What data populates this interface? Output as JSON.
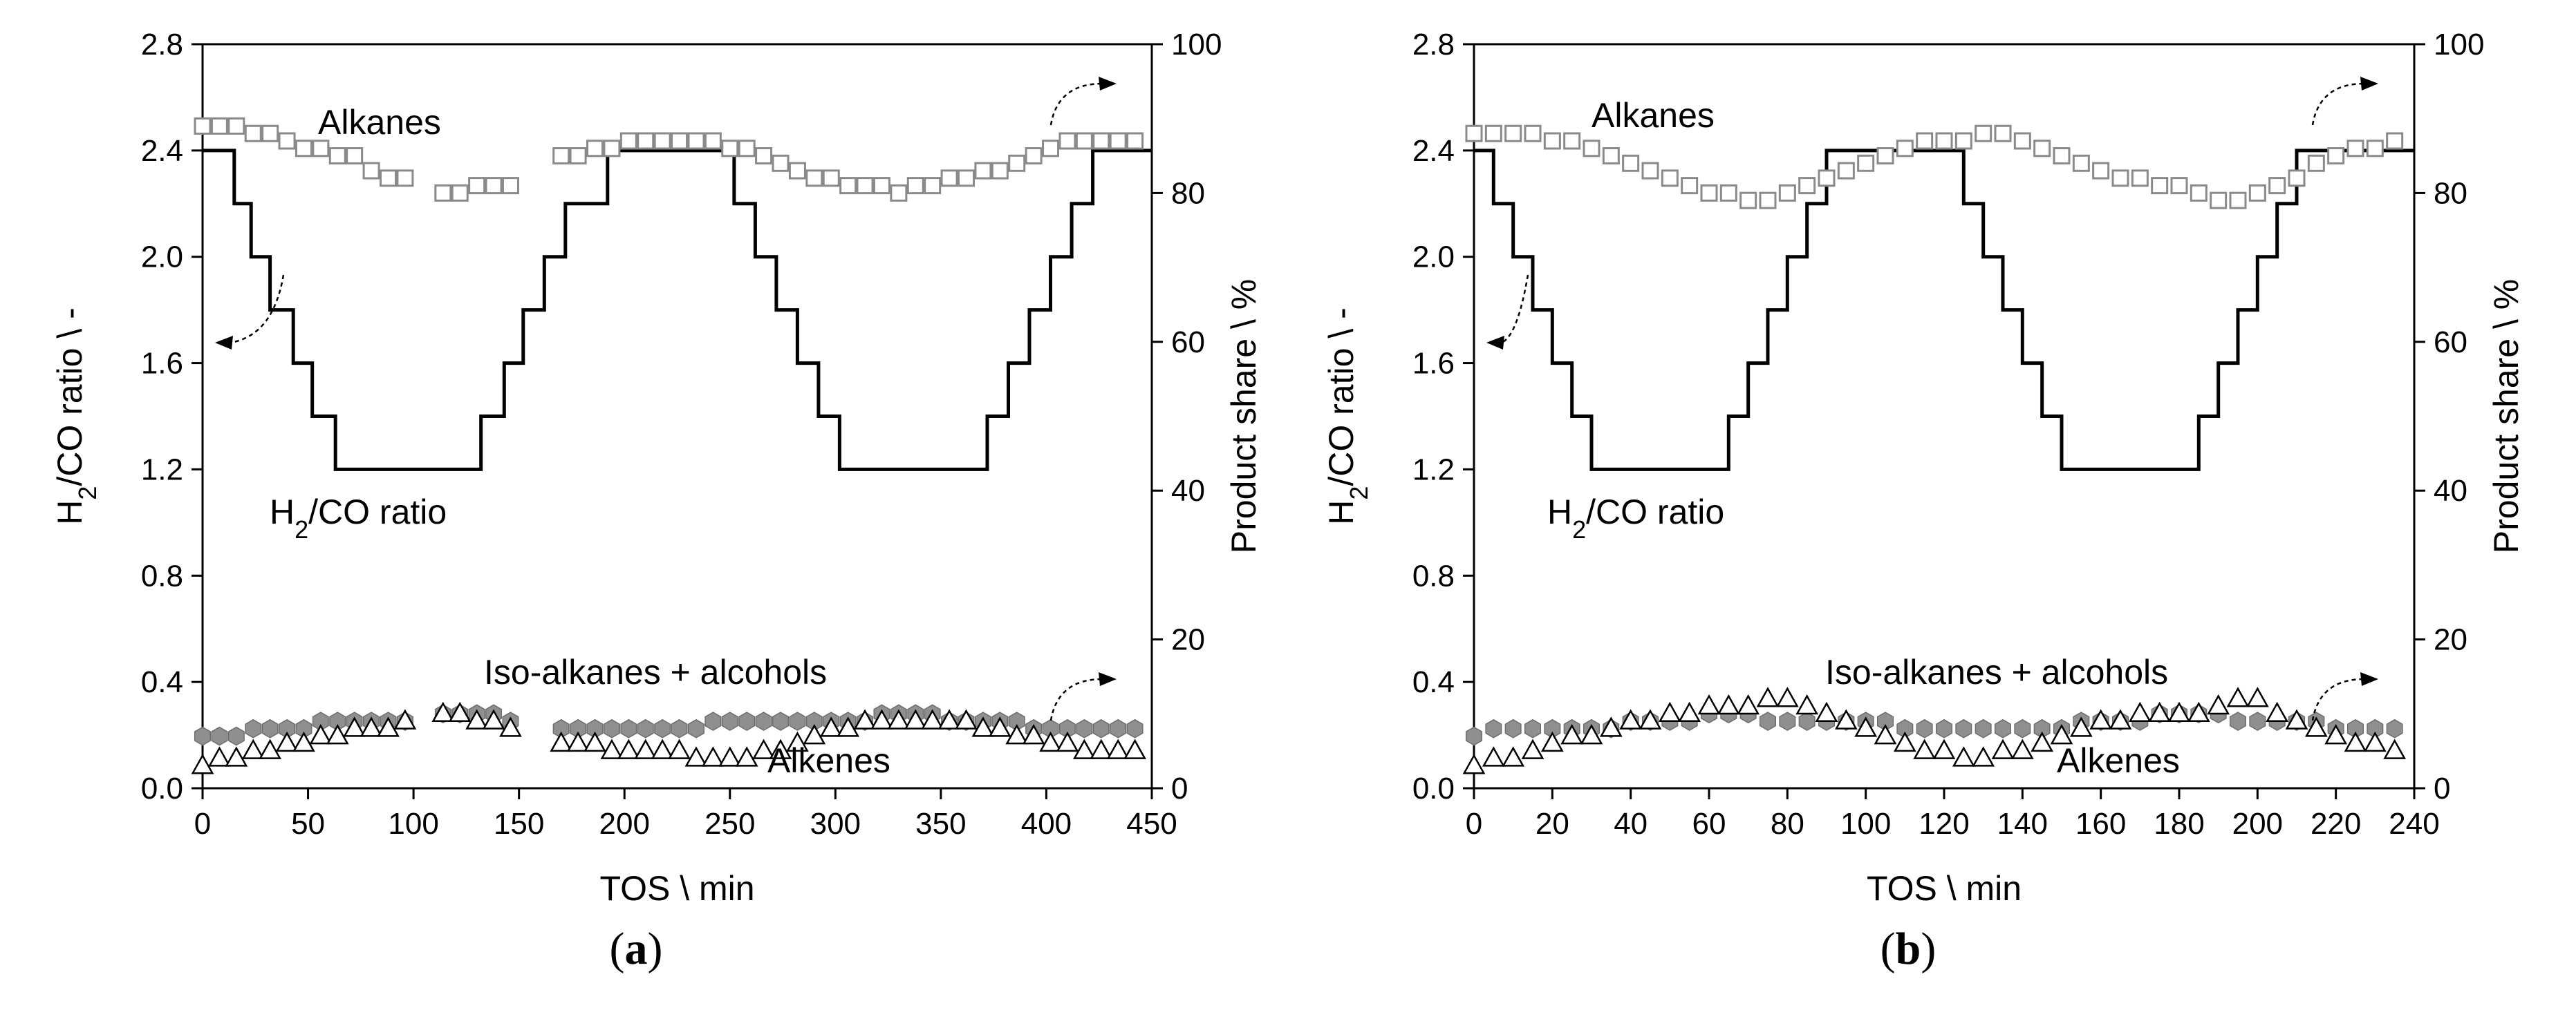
{
  "chart_data": [
    {
      "type": "line",
      "panel_label": "a",
      "xlabel": "TOS \\ min",
      "ylabel_left": "H2/CO ratio \\ -",
      "ylabel_right": "Product share \\ %",
      "xlim": [
        0,
        450
      ],
      "ylim_left": [
        0,
        2.8
      ],
      "ylim_right": [
        0,
        100
      ],
      "xticks": [
        0,
        50,
        100,
        150,
        200,
        250,
        300,
        350,
        400,
        450
      ],
      "yticks_left": [
        "0.0",
        "0.4",
        "0.8",
        "1.2",
        "1.6",
        "2.0",
        "2.4",
        "2.8"
      ],
      "yticks_right": [
        "0",
        "20",
        "40",
        "60",
        "80",
        "100"
      ],
      "annotations": {
        "alkanes": "Alkanes",
        "ratio": "H2/CO ratio",
        "iso": "Iso-alkanes + alcohols",
        "alkenes": "Alkenes"
      },
      "series": [
        {
          "name": "H2/CO ratio",
          "axis": "left",
          "style": "step",
          "x": [
            0,
            15,
            15,
            23,
            23,
            32,
            32,
            43,
            43,
            52,
            52,
            63,
            63,
            132,
            132,
            143,
            143,
            152,
            152,
            162,
            162,
            172,
            172,
            192,
            192,
            252,
            252,
            262,
            262,
            272,
            272,
            282,
            282,
            292,
            292,
            302,
            302,
            372,
            372,
            382,
            382,
            392,
            392,
            402,
            402,
            412,
            412,
            422,
            422,
            450
          ],
          "y": [
            2.4,
            2.4,
            2.2,
            2.2,
            2.0,
            2.0,
            1.8,
            1.8,
            1.6,
            1.6,
            1.4,
            1.4,
            1.2,
            1.2,
            1.4,
            1.4,
            1.6,
            1.6,
            1.8,
            1.8,
            2.0,
            2.0,
            2.2,
            2.2,
            2.4,
            2.4,
            2.2,
            2.2,
            2.0,
            2.0,
            1.8,
            1.8,
            1.6,
            1.6,
            1.4,
            1.4,
            1.2,
            1.2,
            1.4,
            1.4,
            1.6,
            1.6,
            1.8,
            1.8,
            2.0,
            2.0,
            2.2,
            2.2,
            2.4,
            2.4
          ]
        },
        {
          "name": "Alkanes",
          "axis": "right",
          "marker": "open-square",
          "x": [
            0,
            8,
            16,
            24,
            32,
            40,
            48,
            56,
            64,
            72,
            80,
            88,
            96,
            114,
            122,
            130,
            138,
            146,
            170,
            178,
            186,
            194,
            202,
            210,
            218,
            226,
            234,
            242,
            250,
            258,
            266,
            274,
            282,
            290,
            298,
            306,
            314,
            322,
            330,
            338,
            346,
            354,
            362,
            370,
            378,
            386,
            394,
            402,
            410,
            418,
            426,
            434,
            442
          ],
          "y": [
            89,
            89,
            89,
            88,
            88,
            87,
            86,
            86,
            85,
            85,
            83,
            82,
            82,
            80,
            80,
            81,
            81,
            81,
            85,
            85,
            86,
            86,
            87,
            87,
            87,
            87,
            87,
            87,
            86,
            86,
            85,
            84,
            83,
            82,
            82,
            81,
            81,
            81,
            80,
            81,
            81,
            82,
            82,
            83,
            83,
            84,
            85,
            86,
            87,
            87,
            87,
            87,
            87
          ]
        },
        {
          "name": "Iso-alkanes + alcohols",
          "axis": "right",
          "marker": "filled-hexagon",
          "x": [
            0,
            8,
            16,
            24,
            32,
            40,
            48,
            56,
            64,
            72,
            80,
            88,
            96,
            114,
            122,
            130,
            138,
            146,
            170,
            178,
            186,
            194,
            202,
            210,
            218,
            226,
            234,
            242,
            250,
            258,
            266,
            274,
            282,
            290,
            298,
            306,
            314,
            322,
            330,
            338,
            346,
            354,
            362,
            370,
            378,
            386,
            394,
            402,
            410,
            418,
            426,
            434,
            442
          ],
          "y": [
            7,
            7,
            7,
            8,
            8,
            8,
            8,
            9,
            9,
            9,
            9,
            9,
            9,
            10,
            10,
            10,
            10,
            9,
            8,
            8,
            8,
            8,
            8,
            8,
            8,
            8,
            8,
            9,
            9,
            9,
            9,
            9,
            9,
            9,
            9,
            9,
            9,
            10,
            10,
            10,
            10,
            9,
            9,
            9,
            9,
            9,
            8,
            8,
            8,
            8,
            8,
            8,
            8
          ]
        },
        {
          "name": "Alkenes",
          "axis": "right",
          "marker": "open-triangle",
          "x": [
            0,
            8,
            16,
            24,
            32,
            40,
            48,
            56,
            64,
            72,
            80,
            88,
            96,
            114,
            122,
            130,
            138,
            146,
            170,
            178,
            186,
            194,
            202,
            210,
            218,
            226,
            234,
            242,
            250,
            258,
            266,
            274,
            282,
            290,
            298,
            306,
            314,
            322,
            330,
            338,
            346,
            354,
            362,
            370,
            378,
            386,
            394,
            402,
            410,
            418,
            426,
            434,
            442
          ],
          "y": [
            3,
            4,
            4,
            5,
            5,
            6,
            6,
            7,
            7,
            8,
            8,
            8,
            9,
            10,
            10,
            9,
            9,
            8,
            6,
            6,
            6,
            5,
            5,
            5,
            5,
            5,
            4,
            4,
            4,
            4,
            5,
            5,
            6,
            7,
            8,
            8,
            9,
            9,
            9,
            9,
            9,
            9,
            9,
            8,
            8,
            7,
            7,
            6,
            6,
            5,
            5,
            5,
            5
          ]
        }
      ]
    },
    {
      "type": "line",
      "panel_label": "b",
      "xlabel": "TOS \\ min",
      "ylabel_left": "H2/CO ratio \\ -",
      "ylabel_right": "Product share \\ %",
      "xlim": [
        0,
        240
      ],
      "ylim_left": [
        0,
        2.8
      ],
      "ylim_right": [
        0,
        100
      ],
      "xticks": [
        0,
        20,
        40,
        60,
        80,
        100,
        120,
        140,
        160,
        180,
        200,
        220,
        240
      ],
      "yticks_left": [
        "0.0",
        "0.4",
        "0.8",
        "1.2",
        "1.6",
        "2.0",
        "2.4",
        "2.8"
      ],
      "yticks_right": [
        "0",
        "20",
        "40",
        "60",
        "80",
        "100"
      ],
      "annotations": {
        "alkanes": "Alkanes",
        "ratio": "H2/CO ratio",
        "iso": "Iso-alkanes + alcohols",
        "alkenes": "Alkenes"
      },
      "series": [
        {
          "name": "H2/CO ratio",
          "axis": "left",
          "style": "step",
          "x": [
            0,
            5,
            5,
            10,
            10,
            15,
            15,
            20,
            20,
            25,
            25,
            30,
            30,
            65,
            65,
            70,
            70,
            75,
            75,
            80,
            80,
            85,
            85,
            90,
            90,
            125,
            125,
            130,
            130,
            135,
            135,
            140,
            140,
            145,
            145,
            150,
            150,
            185,
            185,
            190,
            190,
            195,
            195,
            200,
            200,
            205,
            205,
            210,
            210,
            240
          ],
          "y": [
            2.4,
            2.4,
            2.2,
            2.2,
            2.0,
            2.0,
            1.8,
            1.8,
            1.6,
            1.6,
            1.4,
            1.4,
            1.2,
            1.2,
            1.4,
            1.4,
            1.6,
            1.6,
            1.8,
            1.8,
            2.0,
            2.0,
            2.2,
            2.2,
            2.4,
            2.4,
            2.2,
            2.2,
            2.0,
            2.0,
            1.8,
            1.8,
            1.6,
            1.6,
            1.4,
            1.4,
            1.2,
            1.2,
            1.4,
            1.4,
            1.6,
            1.6,
            1.8,
            1.8,
            2.0,
            2.0,
            2.2,
            2.2,
            2.4,
            2.4
          ]
        },
        {
          "name": "Alkanes",
          "axis": "right",
          "marker": "open-square",
          "x": [
            0,
            5,
            10,
            15,
            20,
            25,
            30,
            35,
            40,
            45,
            50,
            55,
            60,
            65,
            70,
            75,
            80,
            85,
            90,
            95,
            100,
            105,
            110,
            115,
            120,
            125,
            130,
            135,
            140,
            145,
            150,
            155,
            160,
            165,
            170,
            175,
            180,
            185,
            190,
            195,
            200,
            205,
            210,
            215,
            220,
            225,
            230,
            235
          ],
          "y": [
            88,
            88,
            88,
            88,
            87,
            87,
            86,
            85,
            84,
            83,
            82,
            81,
            80,
            80,
            79,
            79,
            80,
            81,
            82,
            83,
            84,
            85,
            86,
            87,
            87,
            87,
            88,
            88,
            87,
            86,
            85,
            84,
            83,
            82,
            82,
            81,
            81,
            80,
            79,
            79,
            80,
            81,
            82,
            84,
            85,
            86,
            86,
            87
          ]
        },
        {
          "name": "Iso-alkanes + alcohols",
          "axis": "right",
          "marker": "filled-hexagon",
          "x": [
            0,
            5,
            10,
            15,
            20,
            25,
            30,
            35,
            40,
            45,
            50,
            55,
            60,
            65,
            70,
            75,
            80,
            85,
            90,
            95,
            100,
            105,
            110,
            115,
            120,
            125,
            130,
            135,
            140,
            145,
            150,
            155,
            160,
            165,
            170,
            175,
            180,
            185,
            190,
            195,
            200,
            205,
            210,
            215,
            220,
            225,
            230,
            235
          ],
          "y": [
            7,
            8,
            8,
            8,
            8,
            8,
            8,
            8,
            9,
            9,
            9,
            9,
            10,
            10,
            10,
            9,
            9,
            9,
            9,
            9,
            9,
            9,
            8,
            8,
            8,
            8,
            8,
            8,
            8,
            8,
            8,
            9,
            9,
            9,
            9,
            10,
            10,
            10,
            10,
            9,
            9,
            9,
            9,
            9,
            8,
            8,
            8,
            8
          ]
        },
        {
          "name": "Alkenes",
          "axis": "right",
          "marker": "open-triangle",
          "x": [
            0,
            5,
            10,
            15,
            20,
            25,
            30,
            35,
            40,
            45,
            50,
            55,
            60,
            65,
            70,
            75,
            80,
            85,
            90,
            95,
            100,
            105,
            110,
            115,
            120,
            125,
            130,
            135,
            140,
            145,
            150,
            155,
            160,
            165,
            170,
            175,
            180,
            185,
            190,
            195,
            200,
            205,
            210,
            215,
            220,
            225,
            230,
            235
          ],
          "y": [
            3,
            4,
            4,
            5,
            6,
            7,
            7,
            8,
            9,
            9,
            10,
            10,
            11,
            11,
            11,
            12,
            12,
            11,
            10,
            9,
            8,
            7,
            6,
            5,
            5,
            4,
            4,
            5,
            5,
            6,
            7,
            8,
            9,
            9,
            10,
            10,
            10,
            10,
            11,
            12,
            12,
            10,
            9,
            8,
            7,
            6,
            6,
            5
          ]
        }
      ]
    }
  ]
}
